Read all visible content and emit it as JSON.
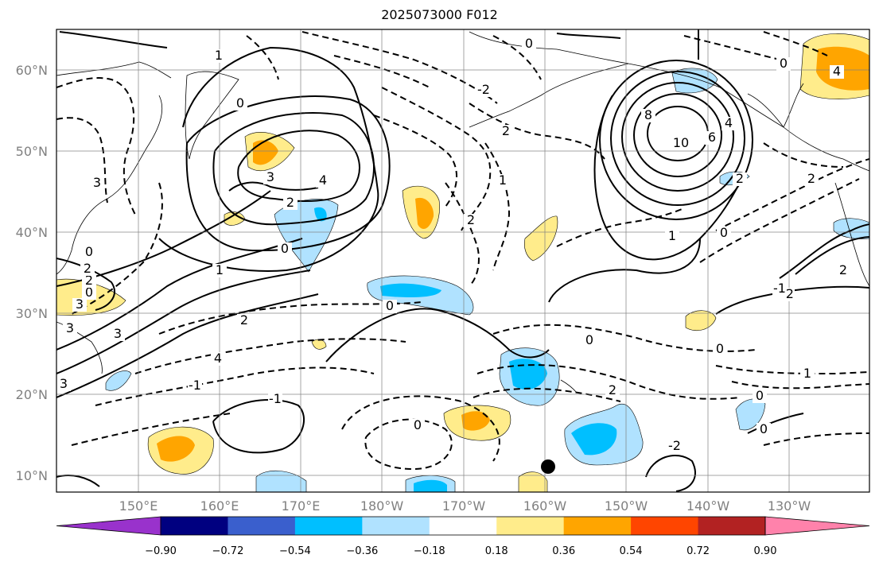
{
  "title": "2025073000 F012",
  "map": {
    "lat_labels": [
      "10°N",
      "20°N",
      "30°N",
      "40°N",
      "50°N",
      "60°N"
    ],
    "lon_labels": [
      "150°E",
      "160°E",
      "170°E",
      "180°W",
      "170°W",
      "160°W",
      "150°W",
      "140°W",
      "130°W"
    ],
    "contour_labels": [
      "0",
      "2",
      "3",
      "2",
      "0",
      "-1",
      "1",
      "0",
      "3",
      "4",
      "2",
      "0",
      "1",
      "2",
      "4",
      "3",
      "0",
      "2",
      "1",
      "2",
      "-2",
      "0",
      "0",
      "-1",
      "0",
      "8",
      "10",
      "6",
      "4",
      "2",
      "1",
      "0",
      "-2",
      "0",
      "-2",
      "2",
      "1",
      "0",
      "0",
      "-1",
      "2",
      "0",
      "2",
      "4",
      "3",
      "3",
      "3"
    ],
    "marker": "filled-circle"
  },
  "colorbar": {
    "colors": [
      "#9932cc",
      "#000080",
      "#3a5fcd",
      "#00bfff",
      "#b0e2ff",
      "#ffffff",
      "#ffec8b",
      "#ffa500",
      "#ff4500",
      "#b22222",
      "#ff82ab"
    ],
    "tick_labels": [
      "−0.90",
      "−0.72",
      "−0.54",
      "−0.36",
      "−0.18",
      "0.18",
      "0.36",
      "0.54",
      "0.72",
      "0.90"
    ]
  }
}
